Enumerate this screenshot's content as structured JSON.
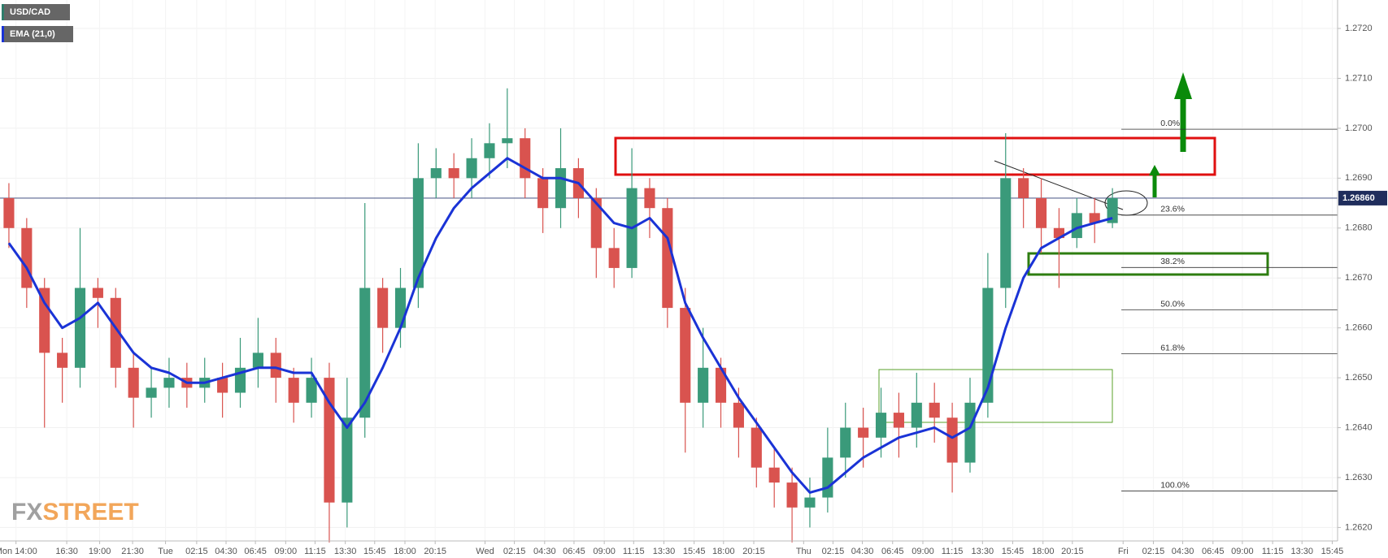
{
  "chart_data": {
    "type": "candlestick",
    "grid": true,
    "up_color": "#3a9a7a",
    "down_color": "#d9534f",
    "ylim": [
      1.26173,
      1.27257
    ],
    "xlim": [
      0,
      75.15
    ],
    "yticks": [
      {
        "value": 1.262,
        "label": "1.2620"
      },
      {
        "value": 1.263,
        "label": "1.2630"
      },
      {
        "value": 1.264,
        "label": "1.2640"
      },
      {
        "value": 1.265,
        "label": "1.2650"
      },
      {
        "value": 1.266,
        "label": "1.2660"
      },
      {
        "value": 1.267,
        "label": "1.2670"
      },
      {
        "value": 1.268,
        "label": "1.2680"
      },
      {
        "value": 1.269,
        "label": "1.2690"
      },
      {
        "value": 1.27,
        "label": "1.2700"
      },
      {
        "value": 1.271,
        "label": "1.2710"
      },
      {
        "value": 1.272,
        "label": "1.2720"
      }
    ],
    "xticks": [
      {
        "value": 0.9,
        "label": "Mon 14:00"
      },
      {
        "value": 3.75,
        "label": "16:30"
      },
      {
        "value": 5.6,
        "label": "19:00"
      },
      {
        "value": 7.45,
        "label": "21:30"
      },
      {
        "value": 9.3,
        "label": "Tue"
      },
      {
        "value": 11.05,
        "label": "02:15"
      },
      {
        "value": 12.7,
        "label": "04:30"
      },
      {
        "value": 14.35,
        "label": "06:45"
      },
      {
        "value": 16.05,
        "label": "09:00"
      },
      {
        "value": 17.7,
        "label": "11:15"
      },
      {
        "value": 19.4,
        "label": "13:30"
      },
      {
        "value": 21.05,
        "label": "15:45"
      },
      {
        "value": 22.75,
        "label": "18:00"
      },
      {
        "value": 24.45,
        "label": "20:15"
      },
      {
        "value": 27.25,
        "label": "Wed"
      },
      {
        "value": 28.9,
        "label": "02:15"
      },
      {
        "value": 30.6,
        "label": "04:30"
      },
      {
        "value": 32.25,
        "label": "06:45"
      },
      {
        "value": 33.95,
        "label": "09:00"
      },
      {
        "value": 35.6,
        "label": "11:15"
      },
      {
        "value": 37.3,
        "label": "13:30"
      },
      {
        "value": 39,
        "label": "15:45"
      },
      {
        "value": 40.65,
        "label": "18:00"
      },
      {
        "value": 42.35,
        "label": "20:15"
      },
      {
        "value": 45.15,
        "label": "Thu"
      },
      {
        "value": 46.8,
        "label": "02:15"
      },
      {
        "value": 48.45,
        "label": "04:30"
      },
      {
        "value": 50.15,
        "label": "06:45"
      },
      {
        "value": 51.85,
        "label": "09:00"
      },
      {
        "value": 53.5,
        "label": "11:15"
      },
      {
        "value": 55.2,
        "label": "13:30"
      },
      {
        "value": 56.9,
        "label": "15:45"
      },
      {
        "value": 58.6,
        "label": "18:00"
      },
      {
        "value": 60.25,
        "label": "20:15"
      },
      {
        "value": 63.1,
        "label": "Fri"
      },
      {
        "value": 64.8,
        "label": "02:15"
      },
      {
        "value": 66.45,
        "label": "04:30"
      },
      {
        "value": 68.15,
        "label": "06:45"
      },
      {
        "value": 69.8,
        "label": "09:00"
      },
      {
        "value": 71.5,
        "label": "11:15"
      },
      {
        "value": 73.15,
        "label": "13:30"
      },
      {
        "value": 74.85,
        "label": "15:45"
      }
    ],
    "series": [
      {
        "name": "USD/CAD",
        "color": "#2e7d6b",
        "open": [
          1.2686,
          1.268,
          1.2668,
          1.2655,
          1.2652,
          1.2668,
          1.2666,
          1.2652,
          1.2646,
          1.2648,
          1.265,
          1.2648,
          1.265,
          1.2647,
          1.2652,
          1.2655,
          1.265,
          1.2645,
          1.265,
          1.2625,
          1.2642,
          1.2668,
          1.266,
          1.2668,
          1.269,
          1.2692,
          1.269,
          1.2694,
          1.2697,
          1.2698,
          1.269,
          1.2684,
          1.2692,
          1.2686,
          1.2676,
          1.2672,
          1.2688,
          1.2684,
          1.2664,
          1.2645,
          1.2652,
          1.2645,
          1.264,
          1.2632,
          1.2629,
          1.2624,
          1.2626,
          1.2634,
          1.264,
          1.2638,
          1.2643,
          1.264,
          1.2645,
          1.2642,
          1.2633,
          1.2645,
          1.2668,
          1.269,
          1.2686,
          1.268,
          1.2678,
          1.2683,
          1.2681
        ],
        "high": [
          1.2689,
          1.2682,
          1.267,
          1.2658,
          1.268,
          1.267,
          1.2668,
          1.2655,
          1.2652,
          1.2654,
          1.2653,
          1.2654,
          1.2653,
          1.2658,
          1.2662,
          1.2658,
          1.2652,
          1.2654,
          1.2653,
          1.265,
          1.2685,
          1.267,
          1.2672,
          1.2697,
          1.2696,
          1.2695,
          1.2698,
          1.2701,
          1.2708,
          1.27,
          1.2692,
          1.27,
          1.2694,
          1.2688,
          1.268,
          1.2696,
          1.269,
          1.2686,
          1.2668,
          1.266,
          1.2654,
          1.2648,
          1.2642,
          1.2636,
          1.2632,
          1.263,
          1.264,
          1.2645,
          1.2644,
          1.2648,
          1.2647,
          1.2651,
          1.2649,
          1.2645,
          1.265,
          1.2675,
          1.2699,
          1.2692,
          1.269,
          1.2684,
          1.2686,
          1.2686,
          1.2688
        ],
        "low": [
          1.2676,
          1.2664,
          1.264,
          1.2645,
          1.2648,
          1.266,
          1.2648,
          1.264,
          1.2642,
          1.2644,
          1.2644,
          1.2645,
          1.2642,
          1.2644,
          1.2648,
          1.2645,
          1.2641,
          1.2642,
          1.2617,
          1.262,
          1.2638,
          1.2655,
          1.2656,
          1.2664,
          1.2686,
          1.2686,
          1.2686,
          1.269,
          1.2692,
          1.2686,
          1.2679,
          1.268,
          1.2682,
          1.267,
          1.2668,
          1.267,
          1.2678,
          1.266,
          1.2635,
          1.264,
          1.264,
          1.2634,
          1.2628,
          1.2624,
          1.2617,
          1.262,
          1.2623,
          1.263,
          1.2632,
          1.2634,
          1.2634,
          1.2636,
          1.2637,
          1.2627,
          1.2631,
          1.2642,
          1.2664,
          1.268,
          1.2675,
          1.2668,
          1.2676,
          1.2677,
          1.268
        ],
        "close": [
          1.268,
          1.2668,
          1.2655,
          1.2652,
          1.2668,
          1.2666,
          1.2652,
          1.2646,
          1.2648,
          1.265,
          1.2648,
          1.265,
          1.2647,
          1.2652,
          1.2655,
          1.265,
          1.2645,
          1.265,
          1.2625,
          1.2642,
          1.2668,
          1.266,
          1.2668,
          1.269,
          1.2692,
          1.269,
          1.2694,
          1.2697,
          1.2698,
          1.269,
          1.2684,
          1.2692,
          1.2686,
          1.2676,
          1.2672,
          1.2688,
          1.2684,
          1.2664,
          1.2645,
          1.2652,
          1.2645,
          1.264,
          1.2632,
          1.2629,
          1.2624,
          1.2626,
          1.2634,
          1.264,
          1.2638,
          1.2643,
          1.264,
          1.2645,
          1.2642,
          1.2633,
          1.2645,
          1.2668,
          1.269,
          1.2686,
          1.268,
          1.2678,
          1.2683,
          1.2681,
          1.2686
        ]
      },
      {
        "name": "EMA (21,0)",
        "color": "#1a33d6",
        "values": [
          1.2677,
          1.2672,
          1.2665,
          1.266,
          1.2662,
          1.2665,
          1.266,
          1.2655,
          1.2652,
          1.2651,
          1.2649,
          1.2649,
          1.265,
          1.2651,
          1.2652,
          1.2652,
          1.2651,
          1.2651,
          1.2645,
          1.264,
          1.2645,
          1.2652,
          1.266,
          1.267,
          1.2678,
          1.2684,
          1.2688,
          1.2691,
          1.2694,
          1.2692,
          1.269,
          1.269,
          1.2689,
          1.2685,
          1.2681,
          1.268,
          1.2682,
          1.2678,
          1.2665,
          1.2658,
          1.2652,
          1.2646,
          1.2641,
          1.2636,
          1.2631,
          1.2627,
          1.2628,
          1.2631,
          1.2634,
          1.2636,
          1.2638,
          1.2639,
          1.264,
          1.2638,
          1.264,
          1.2648,
          1.266,
          1.267,
          1.2676,
          1.2678,
          1.268,
          1.2681,
          1.2682
        ]
      }
    ],
    "last_price": {
      "value": 1.2686,
      "label": "1.26860"
    },
    "fib_levels": [
      {
        "label": "0.0%",
        "price": 1.26998
      },
      {
        "label": "23.6%",
        "price": 1.26826
      },
      {
        "label": "38.2%",
        "price": 1.26721
      },
      {
        "label": "50.0%",
        "price": 1.26636
      },
      {
        "label": "61.8%",
        "price": 1.26548
      },
      {
        "label": "100.0%",
        "price": 1.26273
      }
    ],
    "watermark": [
      "FX",
      "STREET"
    ]
  }
}
